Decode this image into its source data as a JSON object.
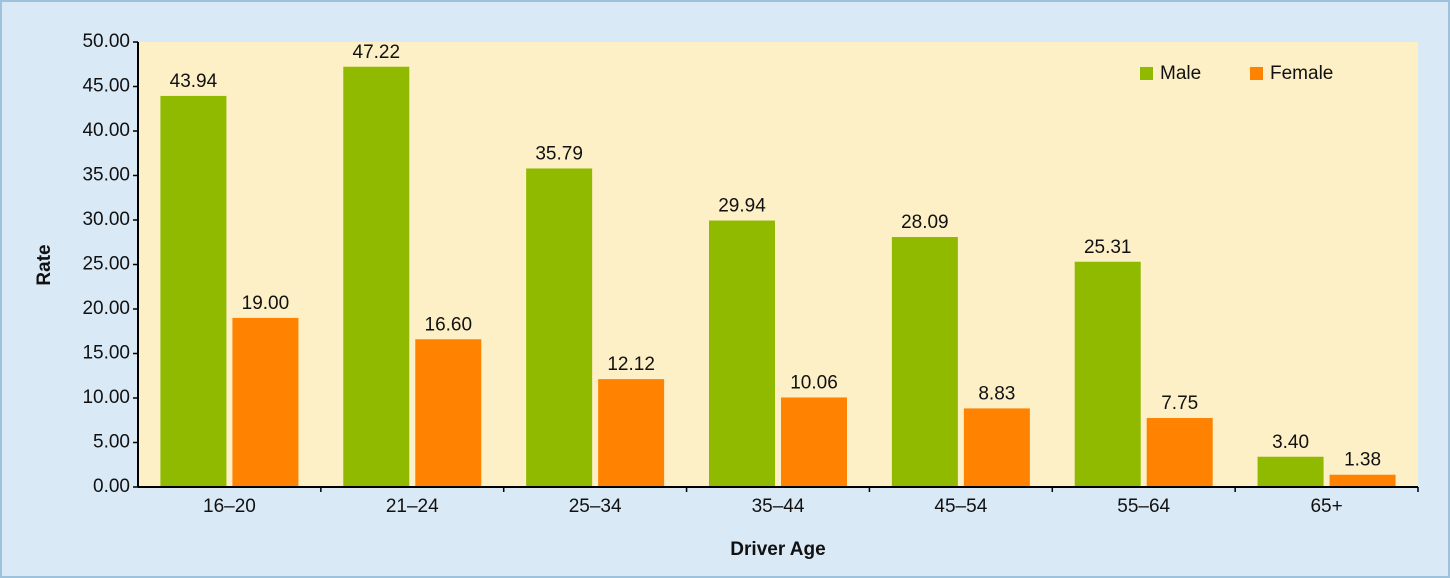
{
  "chart_data": {
    "type": "bar",
    "x_label": "Driver Age",
    "y_label": "Rate",
    "categories": [
      "16–20",
      "21–24",
      "25–34",
      "35–44",
      "45–54",
      "55–64",
      "65+"
    ],
    "series": [
      {
        "name": "Male",
        "color": "#8fba00",
        "values": [
          43.94,
          47.22,
          35.79,
          29.94,
          28.09,
          25.31,
          3.4
        ],
        "value_labels": [
          "43.94",
          "47.22",
          "35.79",
          "29.94",
          "28.09",
          "25.31",
          "3.40"
        ]
      },
      {
        "name": "Female",
        "color": "#ff8200",
        "values": [
          19.0,
          16.6,
          12.12,
          10.06,
          8.83,
          7.75,
          1.38
        ],
        "value_labels": [
          "19.00",
          "16.60",
          "12.12",
          "10.06",
          "8.83",
          "7.75",
          "1.38"
        ]
      }
    ],
    "ylim": [
      0,
      50
    ],
    "yticks": [
      {
        "value": 0,
        "label": "0.00"
      },
      {
        "value": 5,
        "label": "5.00"
      },
      {
        "value": 10,
        "label": "10.00"
      },
      {
        "value": 15,
        "label": "15.00"
      },
      {
        "value": 20,
        "label": "20.00"
      },
      {
        "value": 25,
        "label": "25.00"
      },
      {
        "value": 30,
        "label": "30.00"
      },
      {
        "value": 35,
        "label": "35.00"
      },
      {
        "value": 40,
        "label": "40.00"
      },
      {
        "value": 45,
        "label": "45.00"
      },
      {
        "value": 50,
        "label": "50.00"
      }
    ],
    "legend": "upper right"
  }
}
